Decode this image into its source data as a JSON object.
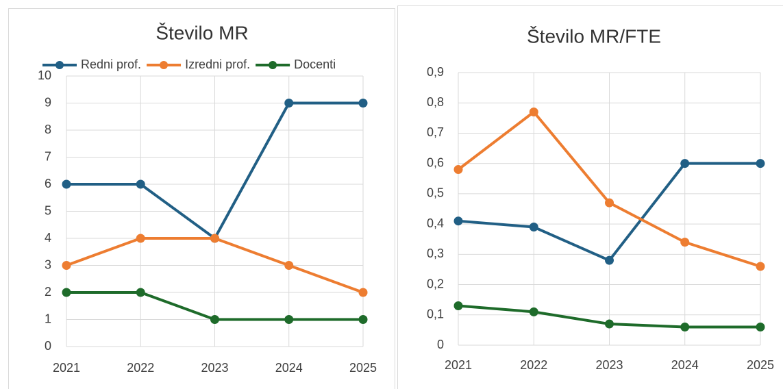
{
  "chart_data": [
    {
      "type": "line",
      "title": "Število MR",
      "categories": [
        "2021",
        "2022",
        "2023",
        "2024",
        "2025"
      ],
      "series": [
        {
          "name": "Redni prof.",
          "color": "#215f85",
          "values": [
            6,
            6,
            4,
            9,
            9
          ]
        },
        {
          "name": "Izredni prof.",
          "color": "#ed7d31",
          "values": [
            3,
            4,
            4,
            3,
            2
          ]
        },
        {
          "name": "Docenti",
          "color": "#1e6b2a",
          "values": [
            2,
            2,
            1,
            1,
            1
          ]
        }
      ],
      "ylim": [
        0,
        10
      ],
      "yticks": [
        0,
        1,
        2,
        3,
        4,
        5,
        6,
        7,
        8,
        9,
        10
      ],
      "grid": true,
      "legend": "top"
    },
    {
      "type": "line",
      "title": "Število MR/FTE",
      "categories": [
        "2021",
        "2022",
        "2023",
        "2024",
        "2025"
      ],
      "series": [
        {
          "color": "#215f85",
          "values": [
            0.41,
            0.39,
            0.28,
            0.6,
            0.6
          ]
        },
        {
          "color": "#ed7d31",
          "values": [
            0.58,
            0.77,
            0.47,
            0.34,
            0.26
          ]
        },
        {
          "color": "#1e6b2a",
          "values": [
            0.13,
            0.11,
            0.07,
            0.06,
            0.06
          ]
        }
      ],
      "ylim": [
        0,
        0.9
      ],
      "yticks": [
        0,
        {
          "value": 0.1,
          "label": "0,1"
        },
        {
          "value": 0.2,
          "label": "0,2"
        },
        {
          "value": 0.3,
          "label": "0,3"
        },
        {
          "value": 0.4,
          "label": "0,4"
        },
        {
          "value": 0.5,
          "label": "0,5"
        },
        {
          "value": 0.6,
          "label": "0,6"
        },
        {
          "value": 0.7,
          "label": "0,7"
        },
        {
          "value": 0.8,
          "label": "0,8"
        },
        {
          "value": 0.9,
          "label": "0,9"
        }
      ],
      "grid": true
    }
  ]
}
